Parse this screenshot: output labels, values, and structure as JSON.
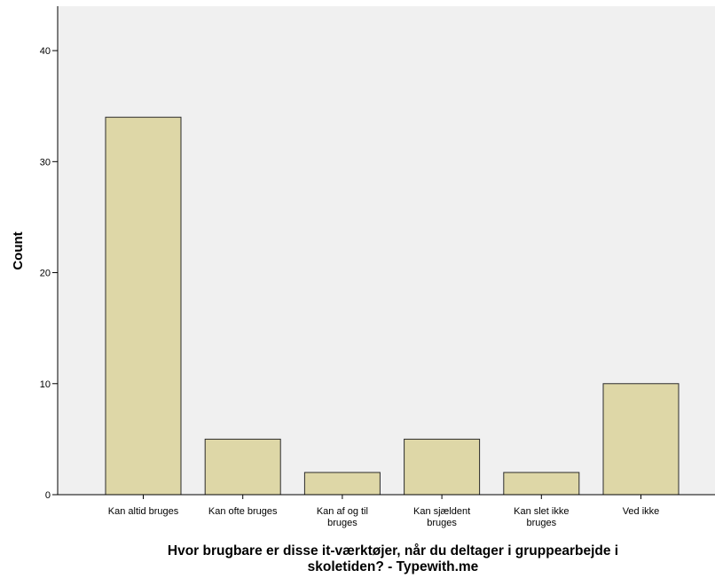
{
  "chart_data": {
    "type": "bar",
    "categories": [
      [
        "Kan altid bruges"
      ],
      [
        "Kan ofte bruges"
      ],
      [
        "Kan af og til",
        "bruges"
      ],
      [
        "Kan sjældent",
        "bruges"
      ],
      [
        "Kan slet ikke",
        "bruges"
      ],
      [
        "Ved ikke"
      ]
    ],
    "values": [
      34,
      5,
      2,
      5,
      2,
      10
    ],
    "ylabel": "Count",
    "xlabel_lines": [
      "Hvor brugbare er disse it-værktøjer, når du deltager i gruppearbejde i",
      "skoletiden? - Typewith.me"
    ],
    "ylim": [
      0,
      44
    ],
    "yticks": [
      0,
      10,
      20,
      30,
      40
    ],
    "grid": false,
    "colors": {
      "plot_background": "#f0f0f0",
      "bar_fill": "#ded7a7",
      "bar_stroke": "#2b2b2b",
      "axis": "#000000"
    }
  }
}
